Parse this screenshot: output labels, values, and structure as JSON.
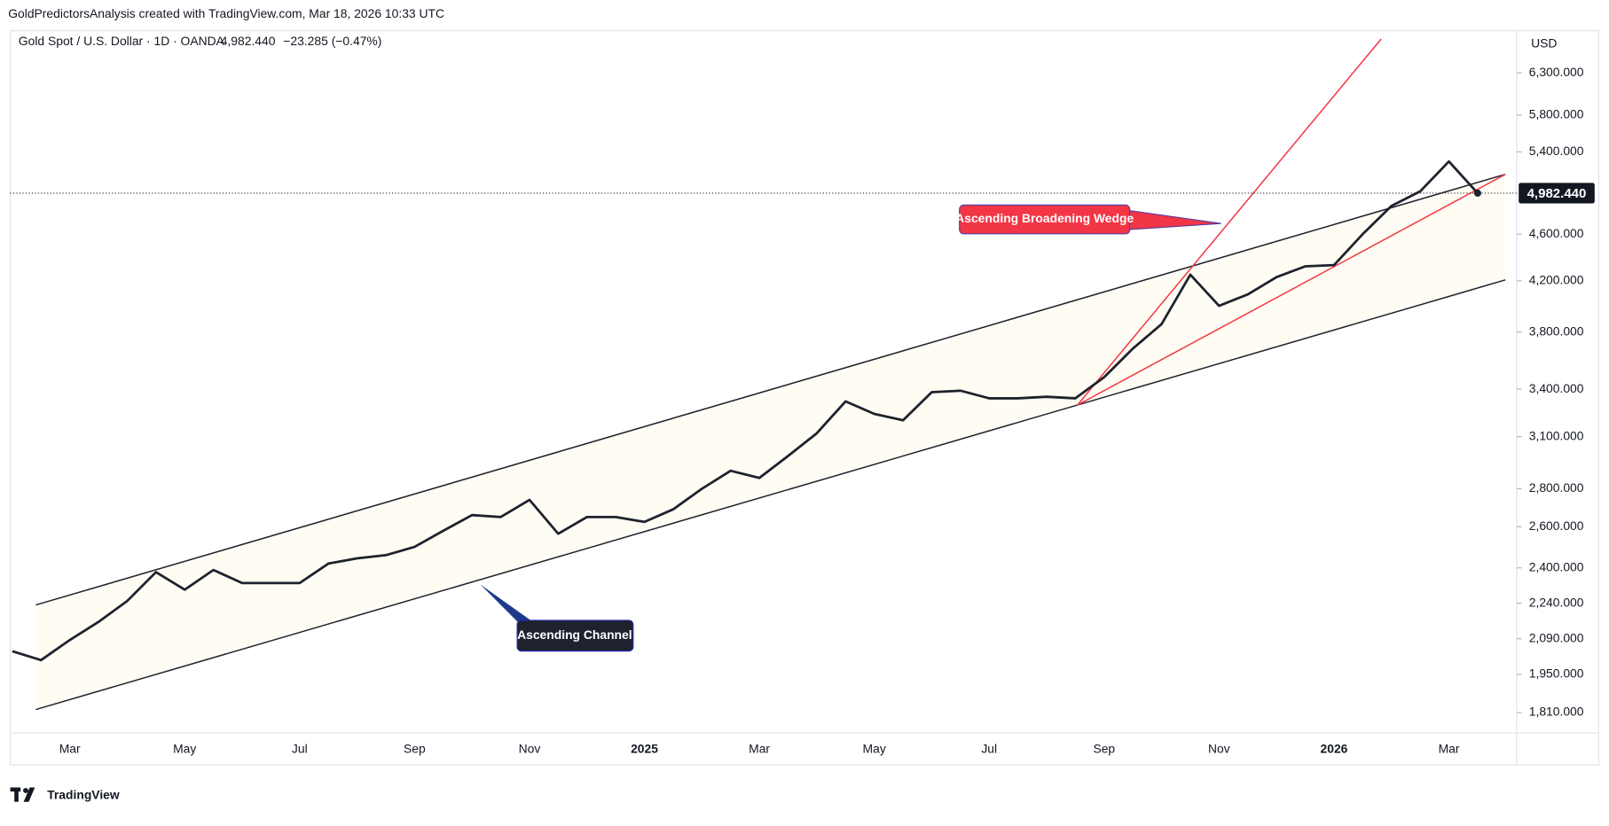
{
  "header": {
    "credit": "GoldPredictorsAnalysis created with TradingView.com, Mar 18, 2026 10:33 UTC",
    "symbol": "Gold Spot / U.S. Dollar · 1D · OANDA",
    "price": "4,982.440",
    "change": "−23.285 (−0.47%)",
    "currency": "USD",
    "brand": "TradingView"
  },
  "chart_data": {
    "type": "line",
    "color": "#1e222d",
    "log_scale": true,
    "categories": [
      null,
      null,
      "Mar",
      null,
      null,
      null,
      "May",
      null,
      null,
      null,
      "Jul",
      null,
      null,
      null,
      "Sep",
      null,
      null,
      null,
      "Nov",
      null,
      null,
      null,
      "2025",
      null,
      "",
      null,
      "Mar",
      null,
      null,
      null,
      "May",
      null,
      null,
      null,
      "Jul",
      null,
      null,
      null,
      "Sep",
      null,
      null,
      null,
      "Nov",
      null,
      null,
      null,
      "2026",
      null,
      null,
      null,
      "Mar",
      null
    ],
    "values": [
      2040,
      2005,
      2085,
      2160,
      2250,
      2380,
      2300,
      2390,
      2330,
      2330,
      2330,
      2420,
      2445,
      2460,
      2500,
      2580,
      2660,
      2650,
      2740,
      2565,
      2650,
      2650,
      2625,
      2690,
      2800,
      2900,
      2860,
      2985,
      3120,
      3320,
      3240,
      3200,
      3380,
      3390,
      3340,
      3340,
      3350,
      3340,
      3480,
      3680,
      3860,
      4250,
      4000,
      4090,
      4230,
      4320,
      4330,
      4600,
      4860,
      5000,
      5300,
      4982.44
    ],
    "price_label": "4,982.440",
    "ylim": [
      1739,
      6838
    ],
    "yticks": [
      {
        "value": 1810,
        "label": "1,810.000"
      },
      {
        "value": 1950,
        "label": "1,950.000"
      },
      {
        "value": 2090,
        "label": "2,090.000"
      },
      {
        "value": 2240,
        "label": "2,240.000"
      },
      {
        "value": 2400,
        "label": "2,400.000"
      },
      {
        "value": 2600,
        "label": "2,600.000"
      },
      {
        "value": 2800,
        "label": "2,800.000"
      },
      {
        "value": 3100,
        "label": "3,100.000"
      },
      {
        "value": 3400,
        "label": "3,400.000"
      },
      {
        "value": 3800,
        "label": "3,800.000"
      },
      {
        "value": 4200,
        "label": "4,200.000"
      },
      {
        "value": 4600,
        "label": "4,600.000"
      },
      {
        "value": 5400,
        "label": "5,400.000"
      },
      {
        "value": 5800,
        "label": "5,800.000"
      },
      {
        "value": 6300,
        "label": "6,300.000"
      }
    ],
    "annotations": [
      "Ascending Channel",
      "Ascending Broadening Wedge"
    ]
  }
}
